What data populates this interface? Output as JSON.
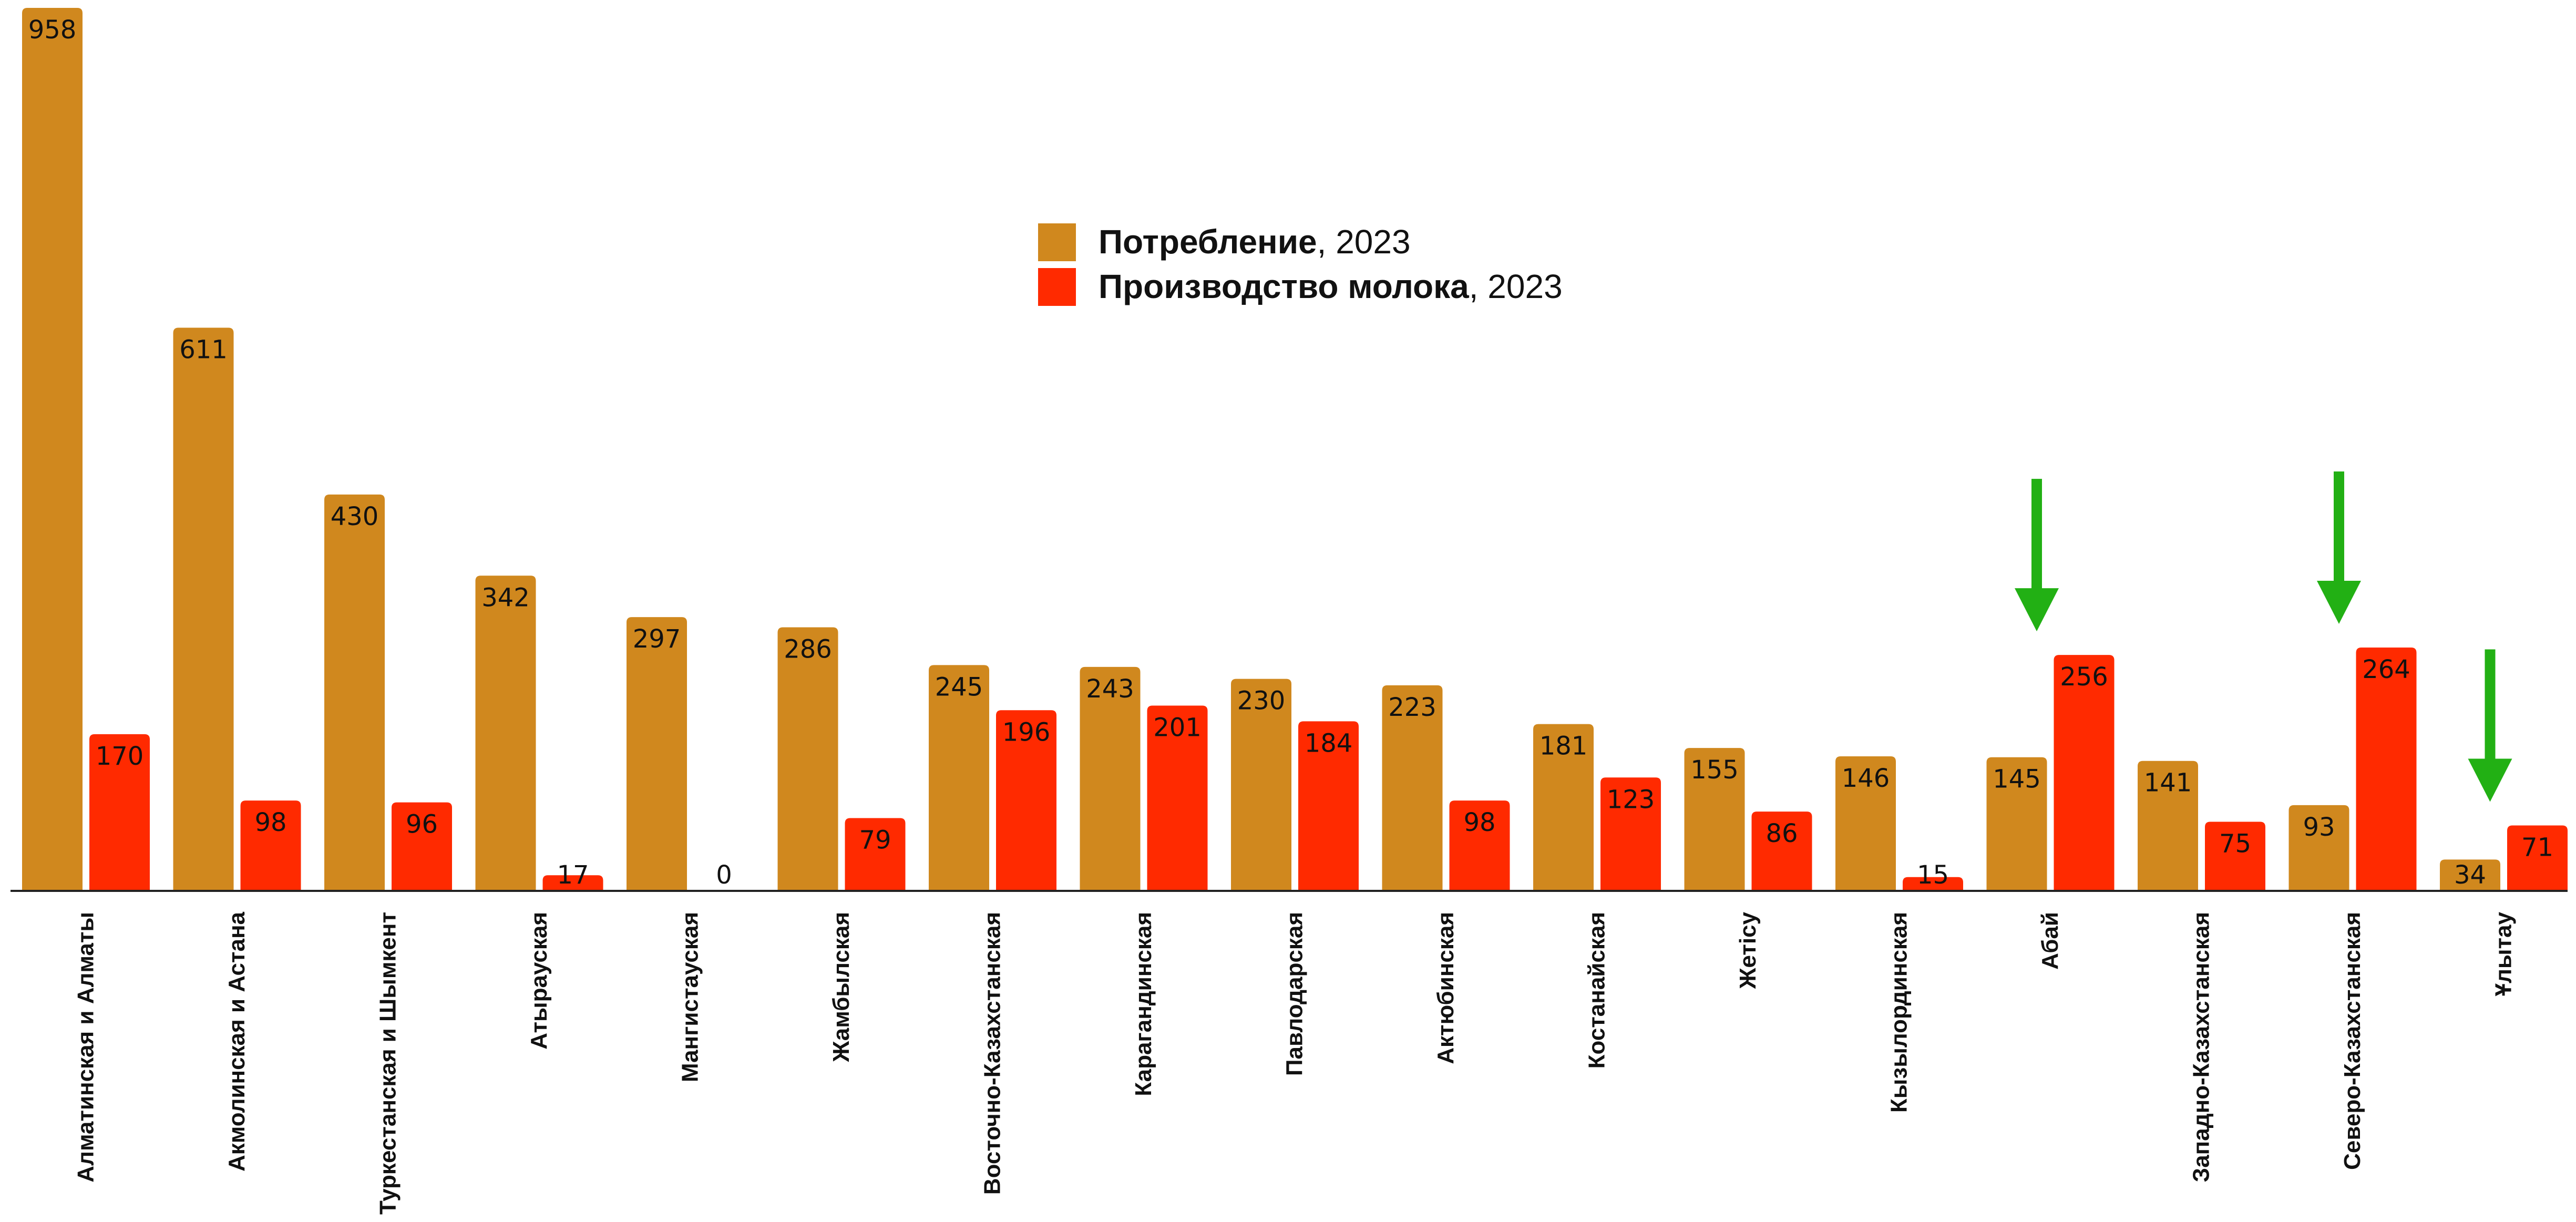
{
  "chart_data": {
    "type": "bar",
    "title": "",
    "xlabel": "",
    "ylabel": "",
    "ylim": [
      0,
      958
    ],
    "grid": false,
    "legend_position": "top-center",
    "categories": [
      "Алматинская и Алматы",
      "Акмолинская и Астана",
      "Туркестанская и Шымкент",
      "Атырауская",
      "Мангистауская",
      "Жамбылская",
      "Восточно-Казахстанская",
      "Карагандинская",
      "Павлодарская",
      "Актюбинская",
      "Костанайская",
      "Жетісу",
      "Кызылординская",
      "Абай",
      "Западно-Казахстанская",
      "Северо-Казахстанская",
      "Ұлытау"
    ],
    "series": [
      {
        "name": "Потребление",
        "legend_suffix": ", 2023",
        "color": "#D0881E",
        "values": [
          958,
          611,
          430,
          342,
          297,
          286,
          245,
          243,
          230,
          223,
          181,
          155,
          146,
          145,
          141,
          93,
          34
        ]
      },
      {
        "name": "Производство молока",
        "legend_suffix": ", 2023",
        "color": "#FF2A00",
        "values": [
          170,
          98,
          96,
          17,
          0,
          79,
          196,
          201,
          184,
          98,
          123,
          86,
          15,
          256,
          75,
          264,
          71
        ]
      }
    ],
    "annotations": [
      {
        "type": "arrow-down",
        "category": "Абай",
        "color": "#22B014"
      },
      {
        "type": "arrow-down",
        "category": "Северо-Казахстанская",
        "color": "#22B014"
      },
      {
        "type": "arrow-down",
        "category": "Ұлытау",
        "color": "#22B014"
      }
    ]
  }
}
